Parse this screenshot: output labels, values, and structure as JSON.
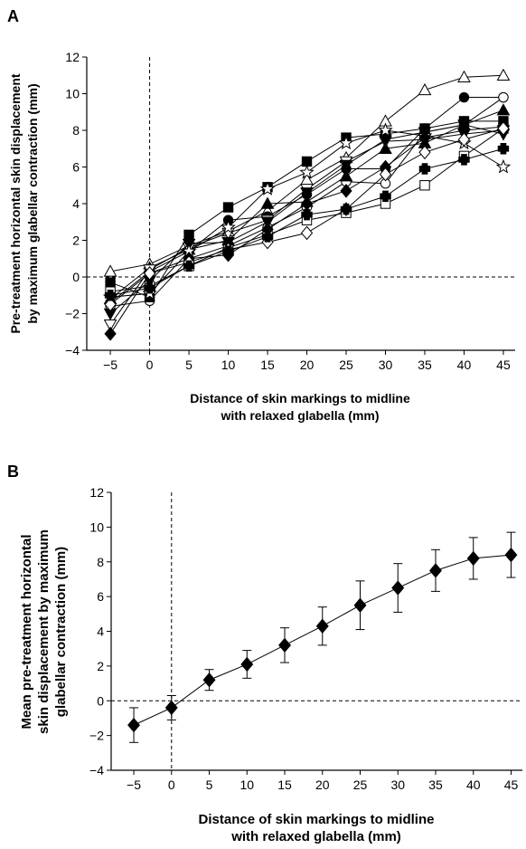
{
  "chart_data": [
    {
      "panel": "A",
      "type": "line",
      "xlabel": [
        "Distance of skin markings to midline",
        "with relaxed glabella (mm)"
      ],
      "ylabel": [
        "Pre-treatment horizontal skin displacement",
        "by maximum glabellar contraction (mm)"
      ],
      "x": [
        -5,
        0,
        5,
        10,
        15,
        20,
        25,
        30,
        35,
        40,
        45
      ],
      "xticks": [
        "−5",
        "0",
        "5",
        "10",
        "15",
        "20",
        "25",
        "30",
        "35",
        "40",
        "45"
      ],
      "yticks": [
        "−4",
        "−2",
        "0",
        "2",
        "4",
        "6",
        "8",
        "10",
        "12"
      ],
      "xlim": [
        -8,
        46.5
      ],
      "ylim": [
        -4,
        12
      ],
      "reference_lines": {
        "x": 0,
        "y": 0,
        "style": "dashed"
      },
      "series": [
        {
          "marker": "triangle-up-open",
          "values": [
            0.3,
            0.7,
            1.7,
            2.5,
            3.6,
            5.3,
            6.5,
            8.5,
            10.2,
            10.9,
            11.0
          ]
        },
        {
          "marker": "circle-filled",
          "values": [
            -1.4,
            0.3,
            1.4,
            3.1,
            3.3,
            4.5,
            5.9,
            5.9,
            8.1,
            9.8,
            9.8
          ]
        },
        {
          "marker": "circle-open",
          "values": [
            -1.6,
            -1.3,
            1.0,
            1.7,
            2.7,
            3.8,
            5.2,
            5.1,
            7.9,
            8.3,
            9.8
          ]
        },
        {
          "marker": "square-filled",
          "values": [
            -0.3,
            -1.1,
            2.3,
            3.8,
            4.9,
            6.3,
            7.6,
            7.8,
            8.1,
            8.5,
            8.5
          ]
        },
        {
          "marker": "square-open",
          "values": [
            -0.8,
            -0.5,
            0.6,
            1.6,
            2.3,
            3.1,
            3.5,
            4.0,
            5.0,
            6.6,
            8.1
          ]
        },
        {
          "marker": "triangle-up-filled",
          "values": [
            -1.2,
            0.5,
            1.5,
            2.0,
            4.0,
            4.1,
            5.5,
            7.0,
            7.3,
            8.3,
            9.1
          ]
        },
        {
          "marker": "triangle-down-open",
          "values": [
            -2.6,
            0.4,
            1.6,
            2.4,
            3.1,
            4.8,
            6.3,
            7.4,
            7.5,
            7.8,
            8.0
          ]
        },
        {
          "marker": "triangle-down-filled",
          "values": [
            -2.0,
            -0.2,
            1.8,
            1.9,
            3.0,
            4.6,
            6.1,
            7.5,
            7.9,
            8.3,
            7.8
          ]
        },
        {
          "marker": "star-open",
          "values": [
            -1.1,
            -0.9,
            1.4,
            2.7,
            4.8,
            5.7,
            7.3,
            8.0,
            7.7,
            7.3,
            6.0
          ]
        },
        {
          "marker": "diamond-filled",
          "values": [
            -3.1,
            0.2,
            1.0,
            1.2,
            2.6,
            4.0,
            4.7,
            6.0,
            7.6,
            8.0,
            8.2
          ]
        },
        {
          "marker": "diamond-open",
          "values": [
            -1.5,
            0.2,
            0.8,
            1.5,
            1.9,
            2.4,
            3.7,
            5.6,
            6.8,
            7.5,
            8.1
          ]
        },
        {
          "marker": "plus-filled",
          "values": [
            -1.0,
            -0.6,
            0.6,
            1.4,
            2.2,
            3.4,
            3.7,
            4.4,
            5.9,
            6.4,
            7.0
          ]
        }
      ]
    },
    {
      "panel": "B",
      "type": "line",
      "xlabel": [
        "Distance of skin markings to midline",
        "with relaxed glabella (mm)"
      ],
      "ylabel": [
        "Mean pre-treatment horizontal",
        "skin displacement by maximum",
        "glabellar contraction (mm)"
      ],
      "x": [
        -5,
        0,
        5,
        10,
        15,
        20,
        25,
        30,
        35,
        40,
        45
      ],
      "xticks": [
        "−5",
        "0",
        "5",
        "10",
        "15",
        "20",
        "25",
        "30",
        "35",
        "40",
        "45"
      ],
      "yticks": [
        "−4",
        "−2",
        "0",
        "2",
        "4",
        "6",
        "8",
        "10",
        "12"
      ],
      "xlim": [
        -8,
        46.5
      ],
      "ylim": [
        -4,
        12
      ],
      "reference_lines": {
        "x": 0,
        "y": 0,
        "style": "dashed"
      },
      "series": [
        {
          "marker": "diamond-filled",
          "values": [
            -1.4,
            -0.4,
            1.2,
            2.1,
            3.2,
            4.3,
            5.5,
            6.5,
            7.5,
            8.2,
            8.4
          ],
          "error": [
            1.0,
            0.7,
            0.6,
            0.8,
            1.0,
            1.1,
            1.4,
            1.4,
            1.2,
            1.2,
            1.3
          ]
        }
      ]
    }
  ]
}
